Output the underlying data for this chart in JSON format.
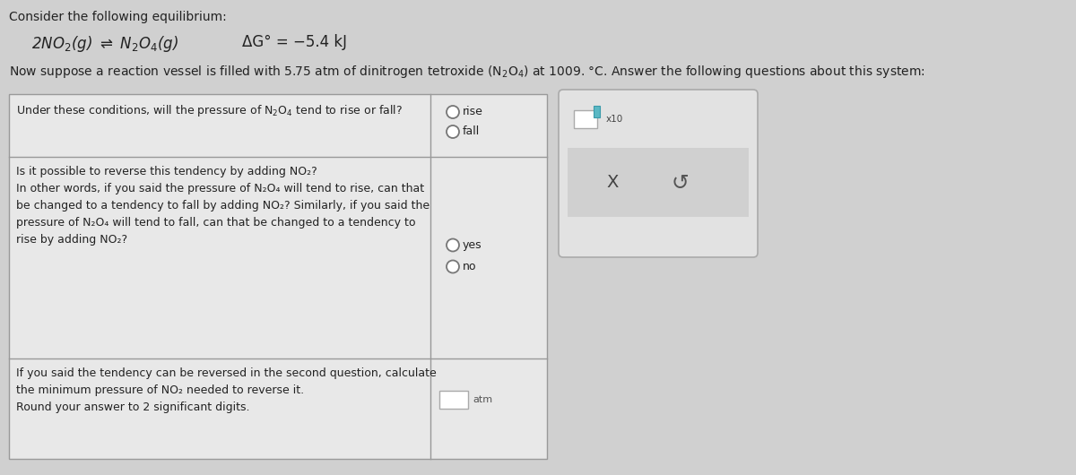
{
  "fig_bg": "#d0d0d0",
  "title_text": "Consider the following equilibrium:",
  "delta_g": "ΔG° = −5.4 kJ",
  "q1_text": "Under these conditions, will the pressure of N₂O₄ tend to rise or fall?",
  "q2_text_lines": [
    "Is it possible to reverse this tendency by adding NO₂?",
    "In other words, if you said the pressure of N₂O₄ will tend to rise, can that",
    "be changed to a tendency to fall by adding NO₂? Similarly, if you said the",
    "pressure of N₂O₄ will tend to fall, can that be changed to a tendency to",
    "rise by adding NO₂?"
  ],
  "q3_text_lines": [
    "If you said the tendency can be reversed in the second question, calculate",
    "the minimum pressure of NO₂ needed to reverse it.",
    "Round your answer to 2 significant digits."
  ],
  "q3_unit": "atm",
  "table_bg": "#e8e8e8",
  "table_border": "#999999",
  "right_panel_bg": "#e2e2e2",
  "right_panel_border": "#aaaaaa",
  "btn_area_bg": "#d0d0d0",
  "text_color": "#222222",
  "radio_edge": "#777777",
  "input_bg": "#ffffff",
  "input_border": "#aaaaaa",
  "teal_color": "#5bb8c4"
}
